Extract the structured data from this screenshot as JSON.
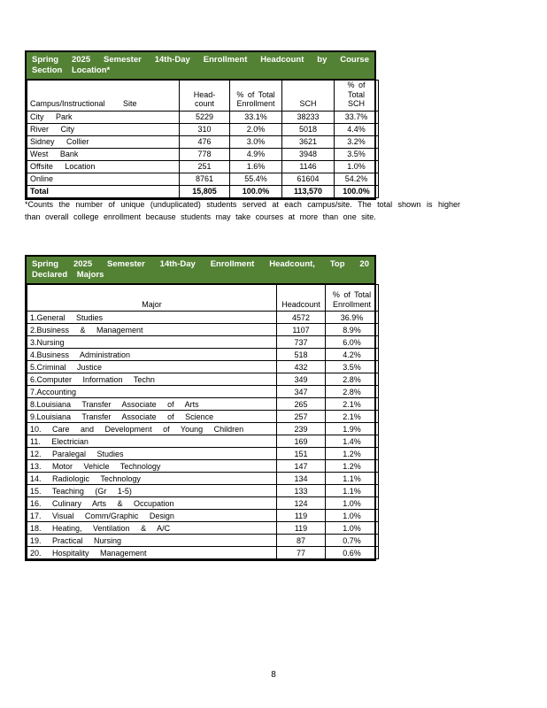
{
  "colors": {
    "header_green": "#548235"
  },
  "page": {
    "number": "8"
  },
  "table1": {
    "title": "Spring 2025 Semester 14th-Day Enrollment Headcount by Course Section Location*",
    "columns": [
      "Campus/Instructional Site",
      "Head-\ncount",
      "% of Total\nEnrollment",
      "SCH",
      "% of Total\nSCH"
    ],
    "rows": [
      {
        "site": "City Park",
        "headcount": "5229",
        "pct_enrollment": "33.1%",
        "sch": "38233",
        "pct_sch": "33.7%"
      },
      {
        "site": "River City",
        "headcount": "310",
        "pct_enrollment": "2.0%",
        "sch": "5018",
        "pct_sch": "4.4%"
      },
      {
        "site": "Sidney Collier",
        "headcount": "476",
        "pct_enrollment": "3.0%",
        "sch": "3621",
        "pct_sch": "3.2%"
      },
      {
        "site": "West Bank",
        "headcount": "778",
        "pct_enrollment": "4.9%",
        "sch": "3948",
        "pct_sch": "3.5%"
      },
      {
        "site": "Offsite Location",
        "headcount": "251",
        "pct_enrollment": "1.6%",
        "sch": "1146",
        "pct_sch": "1.0%"
      },
      {
        "site": "Online",
        "headcount": "8761",
        "pct_enrollment": "55.4%",
        "sch": "61604",
        "pct_sch": "54.2%"
      },
      {
        "site": "Total",
        "headcount": "15,805",
        "pct_enrollment": "100.0%",
        "sch": "113,570",
        "pct_sch": "100.0%"
      }
    ]
  },
  "footnote": "*Counts the number of unique (unduplicated) students served at each campus/site.  The total shown is higher than overall college enrollment because students may take courses at more than one site.",
  "table2": {
    "title": "Spring 2025 Semester 14th-Day Enrollment Headcount, Top 20 Declared Majors",
    "columns": [
      "Major",
      "Headcount",
      "% of Total\nEnrollment"
    ],
    "rows": [
      {
        "major": "1.General Studies",
        "headcount": "4572",
        "pct": "36.9%"
      },
      {
        "major": "2.Business & Management",
        "headcount": "1107",
        "pct": "8.9%"
      },
      {
        "major": "3.Nursing",
        "headcount": "737",
        "pct": "6.0%"
      },
      {
        "major": "4.Business Administration",
        "headcount": "518",
        "pct": "4.2%"
      },
      {
        "major": "5.Criminal Justice",
        "headcount": "432",
        "pct": "3.5%"
      },
      {
        "major": "6.Computer Information Techn",
        "headcount": "349",
        "pct": "2.8%"
      },
      {
        "major": "7.Accounting",
        "headcount": "347",
        "pct": "2.8%"
      },
      {
        "major": "8.Louisiana Transfer Associate of Arts",
        "headcount": "265",
        "pct": "2.1%"
      },
      {
        "major": "9.Louisiana Transfer Associate of Science",
        "headcount": "257",
        "pct": "2.1%"
      },
      {
        "major": "10. Care and Development of Young Children",
        "headcount": "239",
        "pct": "1.9%"
      },
      {
        "major": "11. Electrician",
        "headcount": "169",
        "pct": "1.4%"
      },
      {
        "major": "12. Paralegal Studies",
        "headcount": "151",
        "pct": "1.2%"
      },
      {
        "major": "13. Motor Vehicle Technology",
        "headcount": "147",
        "pct": "1.2%"
      },
      {
        "major": "14. Radiologic Technology",
        "headcount": "134",
        "pct": "1.1%"
      },
      {
        "major": "15. Teaching (Gr 1-5)",
        "headcount": "133",
        "pct": "1.1%"
      },
      {
        "major": "16. Culinary Arts & Occupation",
        "headcount": "124",
        "pct": "1.0%"
      },
      {
        "major": "17. Visual Comm/Graphic Design",
        "headcount": "119",
        "pct": "1.0%"
      },
      {
        "major": "18. Heating, Ventilation & A/C",
        "headcount": "119",
        "pct": "1.0%"
      },
      {
        "major": "19. Practical Nursing",
        "headcount": "87",
        "pct": "0.7%"
      },
      {
        "major": "20. Hospitality Management",
        "headcount": "77",
        "pct": "0.6%"
      }
    ]
  }
}
